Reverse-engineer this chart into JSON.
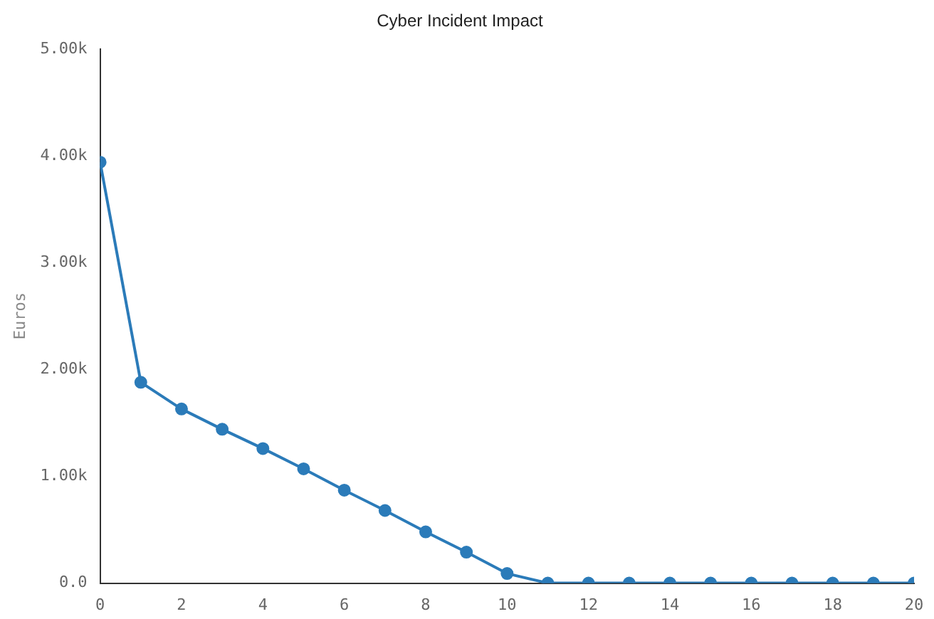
{
  "chart_data": {
    "type": "line",
    "title": "Cyber Incident Impact",
    "ylabel": "Euros",
    "x": [
      0,
      1,
      2,
      3,
      4,
      5,
      6,
      7,
      8,
      9,
      10,
      11,
      12,
      13,
      14,
      15,
      16,
      17,
      18,
      19,
      20
    ],
    "series": [
      {
        "color": "#2b7bb9",
        "values": [
          3.94,
          1.88,
          1.63,
          1.44,
          1.26,
          1.07,
          0.87,
          0.68,
          0.48,
          0.29,
          0.09,
          0,
          0,
          0,
          0,
          0,
          0,
          0,
          0,
          0,
          0
        ]
      }
    ],
    "xlim": [
      0,
      20
    ],
    "xticks": [
      0,
      2,
      4,
      6,
      8,
      10,
      12,
      14,
      16,
      18,
      20
    ],
    "ylim": [
      0,
      5
    ],
    "yticks": [
      {
        "value": 0,
        "label": "0.0"
      },
      {
        "value": 1,
        "label": "1.00k"
      },
      {
        "value": 2,
        "label": "2.00k"
      },
      {
        "value": 3,
        "label": "3.00k"
      },
      {
        "value": 4,
        "label": "4.00k"
      },
      {
        "value": 5,
        "label": "5.00k"
      }
    ],
    "grid": false,
    "legend": false,
    "marker": "circle",
    "line_style": "solid"
  }
}
